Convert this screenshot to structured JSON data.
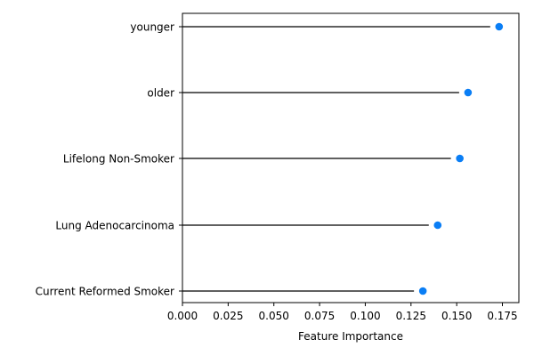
{
  "chart_data": {
    "type": "lollipop",
    "orientation": "horizontal",
    "categories": [
      "younger",
      "older",
      "Lifelong Non-Smoker",
      "Lung Adenocarcinoma",
      "Current Reformed Smoker"
    ],
    "values": [
      0.1732,
      0.1562,
      0.1517,
      0.1396,
      0.1315
    ],
    "xlabel": "Feature Importance",
    "xlim": [
      0,
      0.184
    ],
    "xticks": [
      "0.000",
      "0.025",
      "0.050",
      "0.075",
      "0.100",
      "0.125",
      "0.150",
      "0.175"
    ],
    "xtick_values": [
      0,
      0.025,
      0.05,
      0.075,
      0.1,
      0.125,
      0.15,
      0.175
    ],
    "grid": false,
    "marker_color": "#0a7ef5",
    "stem_color": "#000000"
  }
}
